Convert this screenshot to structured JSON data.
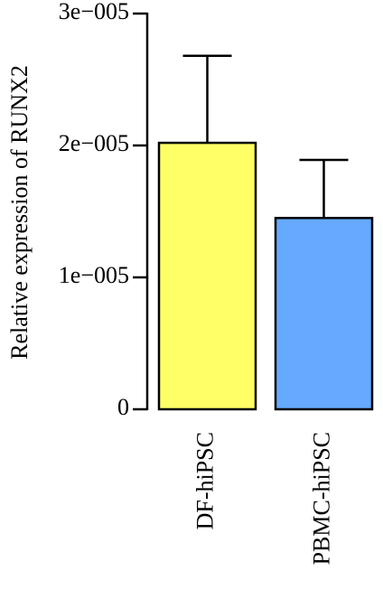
{
  "chart_data": {
    "type": "bar",
    "y_label": "Relative expression of RUNX2",
    "categories": [
      "DF-hiPSC",
      "PBMC-hiPSC"
    ],
    "series": [
      {
        "values": [
          2.02e-05,
          1.45e-05
        ],
        "errors": [
          6.6e-06,
          4.4e-06
        ],
        "colors": [
          "#ffff66",
          "#66aaff"
        ]
      }
    ],
    "ylim": [
      0,
      3e-05
    ],
    "yticks": [
      0,
      {
        "value": 1e-05,
        "label": "1e−005"
      },
      {
        "value": 2e-05,
        "label": "2e−005"
      },
      {
        "value": 3e-05,
        "label": "3e−005"
      }
    ]
  }
}
